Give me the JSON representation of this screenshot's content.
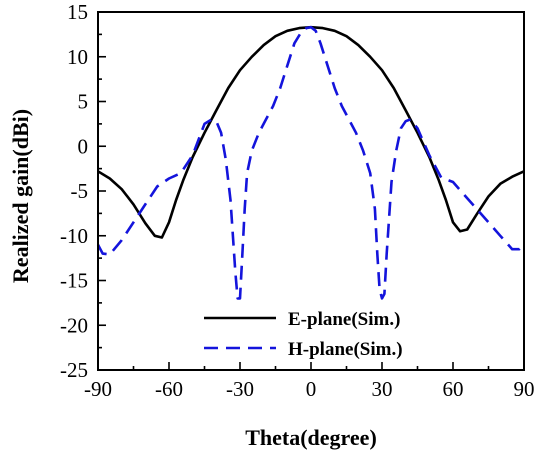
{
  "chart_data": {
    "type": "line",
    "xlabel": "Theta(degree)",
    "ylabel": "Realized gain(dBi)",
    "xlim": [
      -90,
      90
    ],
    "ylim": [
      -25,
      15
    ],
    "xticks": [
      -90,
      -60,
      -30,
      0,
      30,
      60,
      90
    ],
    "yticks": [
      -25,
      -20,
      -15,
      -10,
      -5,
      0,
      5,
      10,
      15
    ],
    "grid": false,
    "legend_position": "bottom-center",
    "series": [
      {
        "name": "E-plane(Sim.)",
        "color": "#000000",
        "style": "solid",
        "x": [
          -90,
          -85,
          -80,
          -75,
          -70,
          -66,
          -63,
          -60,
          -57,
          -54,
          -50,
          -45,
          -40,
          -35,
          -30,
          -25,
          -20,
          -15,
          -10,
          -5,
          0,
          5,
          10,
          15,
          20,
          25,
          30,
          35,
          40,
          45,
          50,
          54,
          57,
          60,
          63,
          66,
          70,
          75,
          80,
          85,
          90
        ],
        "y": [
          -2.8,
          -3.6,
          -4.8,
          -6.5,
          -8.6,
          -10.0,
          -10.2,
          -8.5,
          -6.0,
          -3.8,
          -1.2,
          1.5,
          4.0,
          6.5,
          8.5,
          10.0,
          11.3,
          12.3,
          12.9,
          13.2,
          13.3,
          13.2,
          12.9,
          12.3,
          11.3,
          10.0,
          8.5,
          6.5,
          4.0,
          1.5,
          -1.2,
          -3.8,
          -6.0,
          -8.5,
          -9.5,
          -9.3,
          -7.6,
          -5.6,
          -4.2,
          -3.4,
          -2.8
        ]
      },
      {
        "name": "H-plane(Sim.)",
        "color": "#1414dc",
        "style": "dashed",
        "x": [
          -90,
          -88,
          -85,
          -80,
          -75,
          -70,
          -65,
          -60,
          -55,
          -50,
          -45,
          -42,
          -40,
          -38,
          -36,
          -34,
          -33,
          -32,
          -31,
          -30,
          -29,
          -28,
          -27,
          -25,
          -22,
          -19,
          -16,
          -13,
          -10,
          -7,
          -4,
          -2,
          0,
          2,
          4,
          7,
          10,
          13,
          16,
          19,
          22,
          25,
          27,
          28,
          29,
          30,
          31,
          32,
          33,
          34,
          36,
          38,
          40,
          42,
          45,
          50,
          55,
          60,
          65,
          70,
          75,
          80,
          85,
          88,
          90
        ],
        "y": [
          -11.0,
          -12.0,
          -12.1,
          -10.5,
          -8.5,
          -6.5,
          -4.5,
          -3.6,
          -3.0,
          -1.0,
          2.5,
          3.0,
          2.8,
          1.5,
          -1.5,
          -6.0,
          -10.0,
          -14.0,
          -17.0,
          -17.0,
          -12.0,
          -7.0,
          -3.0,
          -0.5,
          1.5,
          3.0,
          4.5,
          6.5,
          9.0,
          11.5,
          12.8,
          13.2,
          13.3,
          12.9,
          11.5,
          9.0,
          6.5,
          4.5,
          3.0,
          1.5,
          -0.5,
          -3.0,
          -7.0,
          -12.0,
          -16.0,
          -17.0,
          -16.5,
          -12.0,
          -8.0,
          -4.0,
          -0.5,
          2.0,
          2.8,
          3.0,
          2.0,
          -1.0,
          -3.5,
          -4.0,
          -5.5,
          -7.0,
          -8.5,
          -10.0,
          -11.5,
          -11.5,
          -11.0
        ]
      }
    ]
  }
}
